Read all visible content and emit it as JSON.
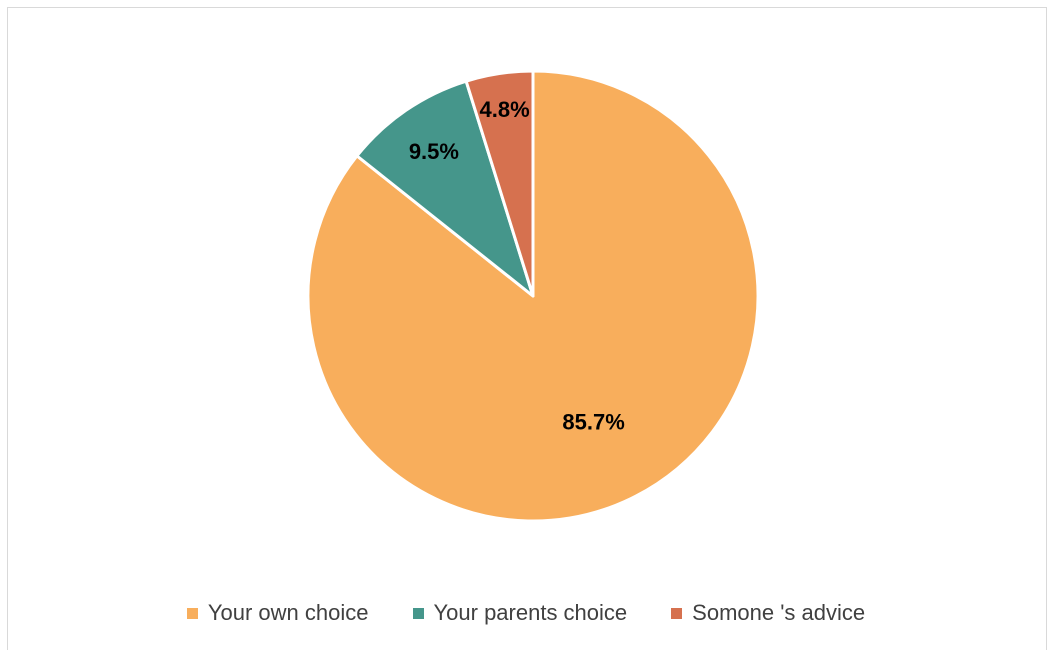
{
  "chart_data": {
    "type": "pie",
    "categories": [
      "Your own choice",
      "Your parents choice",
      "Somone 's advice"
    ],
    "values": [
      85.7,
      9.5,
      4.8
    ],
    "data_labels": [
      "85.7%",
      "9.5%",
      "4.8%"
    ],
    "colors": [
      "#F8AE5C",
      "#45968B",
      "#D6714F"
    ],
    "start_angle_deg": 0,
    "direction": "clockwise",
    "legend_position": "bottom",
    "title": ""
  }
}
